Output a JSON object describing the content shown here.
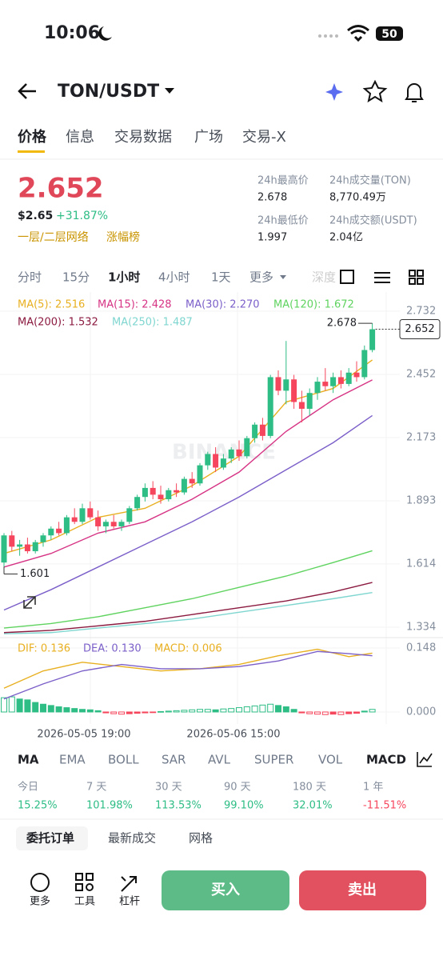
{
  "status_bar": {
    "time": "10:06",
    "battery": "50"
  },
  "header": {
    "title": "TON/USDT"
  },
  "tabs": [
    "价格",
    "信息",
    "交易数据",
    "广场",
    "交易-X"
  ],
  "price": {
    "last": "2.652",
    "usd": "$2.65",
    "change": "+31.87%",
    "tags": [
      "一层/二层网络",
      "涨幅榜"
    ]
  },
  "stats": [
    {
      "label": "24h最高价",
      "value": "2.678"
    },
    {
      "label": "24h成交量(TON)",
      "value": "8,770.49万"
    },
    {
      "label": "24h最低价",
      "value": "1.997"
    },
    {
      "label": "24h成交额(USDT)",
      "value": "2.04亿"
    }
  ],
  "intervals": [
    "分时",
    "15分",
    "1小时",
    "4小时",
    "1天",
    "更多",
    "深度"
  ],
  "chart": {
    "type": "candlestick",
    "watermark": "BINANCE",
    "up_color": "#2ebd85",
    "down_color": "#f6465d",
    "ylim": [
      1.295,
      2.806
    ],
    "yticks": [
      2.732,
      2.452,
      2.173,
      1.893,
      1.614,
      1.334
    ],
    "ohlc": [
      [
        1.62,
        1.75,
        1.601,
        1.74
      ],
      [
        1.74,
        1.76,
        1.67,
        1.69
      ],
      [
        1.69,
        1.72,
        1.65,
        1.7
      ],
      [
        1.7,
        1.73,
        1.66,
        1.67
      ],
      [
        1.67,
        1.72,
        1.66,
        1.71
      ],
      [
        1.71,
        1.75,
        1.69,
        1.74
      ],
      [
        1.74,
        1.78,
        1.72,
        1.77
      ],
      [
        1.77,
        1.8,
        1.74,
        1.75
      ],
      [
        1.75,
        1.83,
        1.74,
        1.82
      ],
      [
        1.82,
        1.86,
        1.79,
        1.8
      ],
      [
        1.8,
        1.88,
        1.79,
        1.86
      ],
      [
        1.86,
        1.89,
        1.81,
        1.82
      ],
      [
        1.82,
        1.85,
        1.76,
        1.78
      ],
      [
        1.78,
        1.81,
        1.75,
        1.8
      ],
      [
        1.8,
        1.83,
        1.77,
        1.78
      ],
      [
        1.78,
        1.81,
        1.76,
        1.8
      ],
      [
        1.8,
        1.87,
        1.79,
        1.86
      ],
      [
        1.86,
        1.92,
        1.85,
        1.91
      ],
      [
        1.91,
        1.97,
        1.89,
        1.95
      ],
      [
        1.95,
        1.98,
        1.9,
        1.92
      ],
      [
        1.92,
        1.96,
        1.88,
        1.9
      ],
      [
        1.9,
        1.95,
        1.89,
        1.94
      ],
      [
        1.94,
        1.97,
        1.91,
        1.93
      ],
      [
        1.93,
        2.0,
        1.92,
        1.99
      ],
      [
        1.99,
        2.02,
        1.95,
        1.97
      ],
      [
        1.97,
        2.06,
        1.96,
        2.05
      ],
      [
        2.05,
        2.11,
        2.03,
        2.1
      ],
      [
        2.1,
        2.13,
        2.02,
        2.04
      ],
      [
        2.04,
        2.1,
        2.03,
        2.08
      ],
      [
        2.08,
        2.13,
        2.06,
        2.12
      ],
      [
        2.12,
        2.16,
        2.07,
        2.09
      ],
      [
        2.09,
        2.18,
        2.08,
        2.17
      ],
      [
        2.17,
        2.24,
        2.15,
        2.23
      ],
      [
        2.23,
        2.26,
        2.16,
        2.18
      ],
      [
        2.18,
        2.45,
        2.17,
        2.44
      ],
      [
        2.44,
        2.47,
        2.36,
        2.38
      ],
      [
        2.38,
        2.6,
        2.32,
        2.43
      ],
      [
        2.43,
        2.45,
        2.3,
        2.33
      ],
      [
        2.33,
        2.38,
        2.24,
        2.3
      ],
      [
        2.3,
        2.39,
        2.27,
        2.37
      ],
      [
        2.37,
        2.44,
        2.34,
        2.42
      ],
      [
        2.42,
        2.48,
        2.38,
        2.4
      ],
      [
        2.4,
        2.46,
        2.37,
        2.44
      ],
      [
        2.44,
        2.47,
        2.39,
        2.41
      ],
      [
        2.41,
        2.48,
        2.4,
        2.46
      ],
      [
        2.46,
        2.51,
        2.42,
        2.44
      ],
      [
        2.44,
        2.58,
        2.43,
        2.56
      ],
      [
        2.56,
        2.678,
        2.55,
        2.652
      ]
    ],
    "ma_series": [
      {
        "name": "MA(5): 2.516",
        "color": "#e8b020",
        "x": [
          0,
          6,
          12,
          18,
          24,
          30,
          36,
          42,
          47
        ],
        "values": [
          1.66,
          1.72,
          1.82,
          1.86,
          1.96,
          2.09,
          2.33,
          2.39,
          2.516
        ]
      },
      {
        "name": "MA(15): 2.428",
        "color": "#d63384",
        "x": [
          0,
          6,
          12,
          18,
          24,
          30,
          36,
          42,
          47
        ],
        "values": [
          1.6,
          1.66,
          1.75,
          1.8,
          1.9,
          2.02,
          2.2,
          2.34,
          2.428
        ]
      },
      {
        "name": "MA(30): 2.270",
        "color": "#7b5fc9",
        "x": [
          0,
          6,
          12,
          18,
          24,
          30,
          36,
          42,
          47
        ],
        "values": [
          1.41,
          1.5,
          1.6,
          1.7,
          1.8,
          1.91,
          2.03,
          2.15,
          2.27
        ]
      },
      {
        "name": "MA(120): 1.672",
        "color": "#5fd35f",
        "x": [
          0,
          6,
          12,
          18,
          24,
          30,
          36,
          42,
          47
        ],
        "values": [
          1.33,
          1.35,
          1.38,
          1.42,
          1.46,
          1.51,
          1.56,
          1.62,
          1.672
        ]
      },
      {
        "name": "MA(200): 1.532",
        "color": "#8b1a3f",
        "x": [
          0,
          6,
          12,
          18,
          24,
          30,
          36,
          42,
          47
        ],
        "values": [
          1.31,
          1.32,
          1.34,
          1.36,
          1.39,
          1.42,
          1.45,
          1.49,
          1.532
        ]
      },
      {
        "name": "MA(250): 1.487",
        "color": "#7fd6d0",
        "x": [
          0,
          6,
          12,
          18,
          24,
          30,
          36,
          42,
          47
        ],
        "values": [
          1.305,
          1.31,
          1.33,
          1.35,
          1.37,
          1.4,
          1.43,
          1.46,
          1.487
        ]
      }
    ],
    "x_labels": [
      "2026-05-05 19:00",
      "2026-05-06 15:00"
    ],
    "macd": {
      "ylim": [
        -0.0278,
        0.1665
      ],
      "yticks": [
        0.148,
        {
          "value": 0,
          "label": "0.000"
        }
      ],
      "legend": [
        {
          "name": "DIF: 0.136",
          "color": "#e8b020"
        },
        {
          "name": "DEA: 0.130",
          "color": "#7b5fc9"
        },
        {
          "name": "MACD: 0.006",
          "color": "#e8b020"
        }
      ],
      "histogram": [
        0.033,
        0.035,
        0.03,
        0.028,
        0.022,
        0.018,
        0.015,
        0.012,
        0.01,
        0.008,
        0.006,
        0.005,
        0.003,
        -0.002,
        -0.004,
        -0.005,
        -0.004,
        -0.003,
        -0.002,
        -0.001,
        0.001,
        0.002,
        0.003,
        0.004,
        0.005,
        0.006,
        0.006,
        0.005,
        0.007,
        0.008,
        0.01,
        0.012,
        0.014,
        0.016,
        0.018,
        0.015,
        0.012,
        0.006,
        -0.002,
        -0.004,
        -0.005,
        -0.006,
        -0.005,
        -0.006,
        -0.004,
        -0.003,
        0.002,
        0.006
      ],
      "dif": {
        "x": [
          0,
          5,
          10,
          15,
          20,
          25,
          30,
          35,
          40,
          44,
          47
        ],
        "values": [
          0.055,
          0.095,
          0.115,
          0.105,
          0.095,
          0.1,
          0.11,
          0.13,
          0.145,
          0.128,
          0.136
        ]
      },
      "dea": {
        "x": [
          0,
          5,
          10,
          15,
          20,
          25,
          30,
          35,
          40,
          44,
          47
        ],
        "values": [
          0.03,
          0.065,
          0.095,
          0.11,
          0.1,
          0.1,
          0.105,
          0.118,
          0.14,
          0.135,
          0.13
        ]
      }
    }
  },
  "indicators": [
    "MA",
    "EMA",
    "BOLL",
    "SAR",
    "AVL",
    "SUPER",
    "VOL",
    "MACD"
  ],
  "performance": [
    {
      "label": "今日",
      "value": "15.25%",
      "color": "#2ebd85"
    },
    {
      "label": "7 天",
      "value": "101.98%",
      "color": "#2ebd85"
    },
    {
      "label": "30 天",
      "value": "113.53%",
      "color": "#2ebd85"
    },
    {
      "label": "90 天",
      "value": "99.10%",
      "color": "#2ebd85"
    },
    {
      "label": "180 天",
      "value": "32.01%",
      "color": "#2ebd85"
    },
    {
      "label": "1 年",
      "value": "-11.51%",
      "color": "#f6465d"
    }
  ],
  "order_tabs": [
    "委托订单",
    "最新成交",
    "网格"
  ],
  "actions": [
    "更多",
    "工具",
    "杠杆"
  ],
  "buy": "买入",
  "sell": "卖出"
}
